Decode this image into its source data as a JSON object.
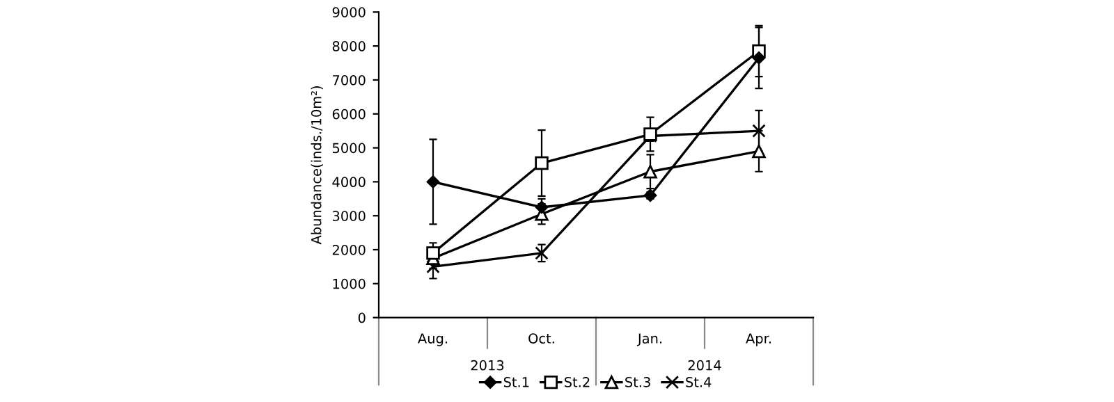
{
  "chart_data": {
    "type": "line",
    "ylabel": "Abundance(inds./10m²)",
    "categories": [
      "Aug.",
      "Oct.",
      "Jan.",
      "Apr."
    ],
    "annotations": [
      "2013",
      "2014"
    ],
    "ylim": [
      0,
      9000
    ],
    "yticks": [
      0,
      1000,
      2000,
      3000,
      4000,
      5000,
      6000,
      7000,
      8000,
      9000
    ],
    "grid": false,
    "legend": "bottom",
    "line_style": "solid",
    "series": [
      {
        "name": "St.1",
        "color": "#000000",
        "marker": "diamond",
        "values": [
          4000,
          3250,
          3600,
          7650
        ],
        "errors": [
          1250,
          250,
          100,
          900
        ]
      },
      {
        "name": "St.2",
        "color": "#000000",
        "marker": "square",
        "values": [
          1900,
          4550,
          5400,
          7850
        ],
        "errors": [
          300,
          970,
          500,
          750
        ]
      },
      {
        "name": "St.3",
        "color": "#000000",
        "marker": "triangle",
        "values": [
          1750,
          3050,
          4300,
          4900
        ],
        "errors": [
          300,
          300,
          500,
          600
        ]
      },
      {
        "name": "St.4",
        "color": "#000000",
        "marker": "cross",
        "values": [
          1500,
          1900,
          5350,
          5500
        ],
        "errors": [
          350,
          250,
          150,
          600
        ]
      }
    ]
  }
}
